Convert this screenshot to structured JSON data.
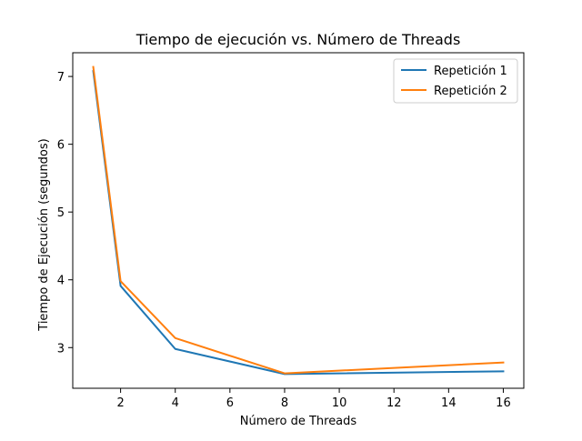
{
  "chart_data": {
    "type": "line",
    "title": "Tiempo de ejecución vs. Número de Threads",
    "xlabel": "Número de Threads",
    "ylabel": "Tiempo de Ejecución (segundos)",
    "xlim": [
      0.25,
      16.75
    ],
    "ylim": [
      2.4,
      7.35
    ],
    "xticks": [
      2,
      4,
      6,
      8,
      10,
      12,
      14,
      16
    ],
    "yticks": [
      3,
      4,
      5,
      6,
      7
    ],
    "grid": false,
    "legend_position": "top-right",
    "x": [
      1,
      2,
      4,
      8,
      16
    ],
    "series": [
      {
        "name": "Repetición 1",
        "color": "#1f77b4",
        "values": [
          7.08,
          3.91,
          2.98,
          2.61,
          2.65
        ]
      },
      {
        "name": "Repetición 2",
        "color": "#ff7f0e",
        "values": [
          7.14,
          3.98,
          3.14,
          2.62,
          2.78
        ]
      }
    ]
  }
}
